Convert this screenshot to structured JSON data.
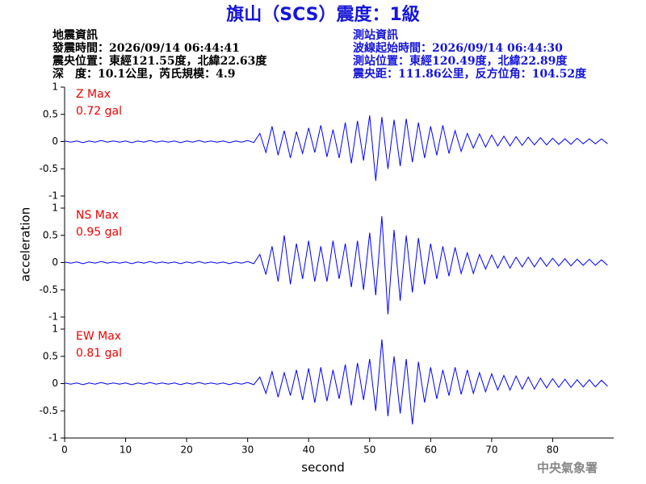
{
  "header": {
    "title": "旗山（SCS）震度：1級",
    "left": [
      "地震資訊",
      "發震時間：2026/09/14 06:44:41",
      "震央位置：東經121.55度，北緯22.63度",
      "深　度：10.1公里，芮氏規模：4.9"
    ],
    "right": [
      "測站資訊",
      "波線起始時間：2026/09/14 06:44:30",
      "測站位置：東經120.49度，北緯22.89度",
      "震央距：111.86公里，反方位角：104.52度"
    ]
  },
  "footer": "中央氣象署",
  "chart_data": [
    {
      "type": "line",
      "ylabel": "acceleration",
      "annotations": [
        "Z Max",
        "0.72 gal"
      ],
      "xlim": [
        0,
        90
      ],
      "ylim": [
        -1,
        1
      ],
      "yticks": [
        1,
        0.5,
        0,
        -0.5,
        -1
      ],
      "x": [
        0,
        1,
        2,
        3,
        4,
        5,
        6,
        7,
        8,
        9,
        10,
        11,
        12,
        13,
        14,
        15,
        16,
        17,
        18,
        19,
        20,
        21,
        22,
        23,
        24,
        25,
        26,
        27,
        28,
        29,
        30,
        31,
        32,
        33,
        34,
        35,
        36,
        37,
        38,
        39,
        40,
        41,
        42,
        43,
        44,
        45,
        46,
        47,
        48,
        49,
        50,
        51,
        52,
        53,
        54,
        55,
        56,
        57,
        58,
        59,
        60,
        61,
        62,
        63,
        64,
        65,
        66,
        67,
        68,
        69,
        70,
        71,
        72,
        73,
        74,
        75,
        76,
        77,
        78,
        79,
        80,
        81,
        82,
        83,
        84,
        85,
        86,
        87,
        88,
        89
      ],
      "series": [
        {
          "color": "#0000ff",
          "values": [
            0.01,
            -0.01,
            0.01,
            -0.02,
            0.01,
            -0.01,
            0.02,
            -0.01,
            0.01,
            -0.01,
            0.01,
            -0.02,
            0.01,
            -0.01,
            0.02,
            -0.01,
            0.01,
            -0.01,
            0.01,
            -0.02,
            0.01,
            -0.01,
            0.02,
            -0.01,
            0.01,
            -0.01,
            0.01,
            -0.02,
            0.01,
            -0.01,
            0.02,
            -0.02,
            0.15,
            -0.2,
            0.28,
            -0.25,
            0.2,
            -0.3,
            0.18,
            -0.22,
            0.25,
            -0.2,
            0.3,
            -0.28,
            0.22,
            -0.3,
            0.35,
            -0.4,
            0.38,
            -0.35,
            0.48,
            -0.72,
            0.45,
            -0.5,
            0.4,
            -0.45,
            0.42,
            -0.38,
            0.35,
            -0.3,
            0.28,
            -0.25,
            0.3,
            -0.22,
            0.2,
            -0.18,
            0.15,
            -0.12,
            0.14,
            -0.1,
            0.12,
            -0.08,
            0.1,
            -0.08,
            0.09,
            -0.07,
            0.08,
            -0.06,
            0.07,
            -0.06,
            0.06,
            -0.05,
            0.05,
            -0.05,
            0.06,
            -0.04,
            0.05,
            -0.04,
            0.05,
            -0.04
          ]
        }
      ]
    },
    {
      "type": "line",
      "annotations": [
        "NS Max",
        "0.95 gal"
      ],
      "xlim": [
        0,
        90
      ],
      "ylim": [
        -1,
        1
      ],
      "yticks": [
        1,
        0.5,
        0,
        -0.5,
        -1
      ],
      "x": [
        0,
        1,
        2,
        3,
        4,
        5,
        6,
        7,
        8,
        9,
        10,
        11,
        12,
        13,
        14,
        15,
        16,
        17,
        18,
        19,
        20,
        21,
        22,
        23,
        24,
        25,
        26,
        27,
        28,
        29,
        30,
        31,
        32,
        33,
        34,
        35,
        36,
        37,
        38,
        39,
        40,
        41,
        42,
        43,
        44,
        45,
        46,
        47,
        48,
        49,
        50,
        51,
        52,
        53,
        54,
        55,
        56,
        57,
        58,
        59,
        60,
        61,
        62,
        63,
        64,
        65,
        66,
        67,
        68,
        69,
        70,
        71,
        72,
        73,
        74,
        75,
        76,
        77,
        78,
        79,
        80,
        81,
        82,
        83,
        84,
        85,
        86,
        87,
        88,
        89
      ],
      "series": [
        {
          "color": "#0000ff",
          "values": [
            0.01,
            -0.01,
            0.01,
            -0.02,
            0.01,
            -0.01,
            0.02,
            -0.01,
            0.01,
            -0.01,
            0.01,
            -0.02,
            0.01,
            -0.01,
            0.02,
            -0.01,
            0.01,
            -0.01,
            0.01,
            -0.02,
            0.01,
            -0.01,
            0.02,
            -0.01,
            0.01,
            -0.01,
            0.01,
            -0.02,
            0.01,
            -0.01,
            0.02,
            -0.02,
            0.15,
            -0.22,
            0.3,
            -0.35,
            0.5,
            -0.4,
            0.35,
            -0.3,
            0.4,
            -0.35,
            0.3,
            -0.35,
            0.4,
            -0.3,
            0.35,
            -0.45,
            0.4,
            -0.5,
            0.55,
            -0.6,
            0.85,
            -0.95,
            0.6,
            -0.7,
            0.5,
            -0.55,
            0.45,
            -0.4,
            0.35,
            -0.3,
            0.3,
            -0.25,
            0.28,
            -0.2,
            0.18,
            -0.2,
            0.15,
            -0.12,
            0.14,
            -0.1,
            0.12,
            -0.1,
            0.1,
            -0.08,
            0.1,
            -0.08,
            0.09,
            -0.07,
            0.08,
            -0.06,
            0.07,
            -0.06,
            0.06,
            -0.05,
            0.06,
            -0.05,
            0.05,
            -0.05
          ]
        }
      ]
    },
    {
      "type": "line",
      "xlabel": "second",
      "annotations": [
        "EW Max",
        "0.81 gal"
      ],
      "xlim": [
        0,
        90
      ],
      "ylim": [
        -1,
        1
      ],
      "yticks": [
        1,
        0.5,
        0,
        -0.5,
        -1
      ],
      "xticks": [
        0,
        10,
        20,
        30,
        40,
        50,
        60,
        70,
        80
      ],
      "x": [
        0,
        1,
        2,
        3,
        4,
        5,
        6,
        7,
        8,
        9,
        10,
        11,
        12,
        13,
        14,
        15,
        16,
        17,
        18,
        19,
        20,
        21,
        22,
        23,
        24,
        25,
        26,
        27,
        28,
        29,
        30,
        31,
        32,
        33,
        34,
        35,
        36,
        37,
        38,
        39,
        40,
        41,
        42,
        43,
        44,
        45,
        46,
        47,
        48,
        49,
        50,
        51,
        52,
        53,
        54,
        55,
        56,
        57,
        58,
        59,
        60,
        61,
        62,
        63,
        64,
        65,
        66,
        67,
        68,
        69,
        70,
        71,
        72,
        73,
        74,
        75,
        76,
        77,
        78,
        79,
        80,
        81,
        82,
        83,
        84,
        85,
        86,
        87,
        88,
        89
      ],
      "series": [
        {
          "color": "#0000ff",
          "values": [
            0.01,
            -0.01,
            0.01,
            -0.02,
            0.01,
            -0.01,
            0.02,
            -0.01,
            0.01,
            -0.01,
            0.01,
            -0.02,
            0.01,
            -0.01,
            0.02,
            -0.01,
            0.01,
            -0.01,
            0.01,
            -0.02,
            0.01,
            -0.01,
            0.02,
            -0.01,
            0.01,
            -0.01,
            0.01,
            -0.02,
            0.01,
            -0.01,
            0.02,
            -0.02,
            0.12,
            -0.18,
            0.22,
            -0.25,
            0.2,
            -0.22,
            0.25,
            -0.3,
            0.28,
            -0.35,
            0.3,
            -0.32,
            0.25,
            -0.28,
            0.35,
            -0.4,
            0.38,
            -0.3,
            0.45,
            -0.5,
            0.81,
            -0.6,
            0.5,
            -0.55,
            0.45,
            -0.75,
            0.4,
            -0.35,
            0.3,
            -0.28,
            0.25,
            -0.22,
            0.3,
            -0.2,
            0.25,
            -0.18,
            0.2,
            -0.15,
            0.18,
            -0.12,
            0.15,
            -0.12,
            0.14,
            -0.1,
            0.12,
            -0.1,
            0.1,
            -0.08,
            0.09,
            -0.07,
            0.08,
            -0.07,
            0.07,
            -0.06,
            0.07,
            -0.06,
            0.06,
            -0.05
          ]
        }
      ]
    }
  ]
}
